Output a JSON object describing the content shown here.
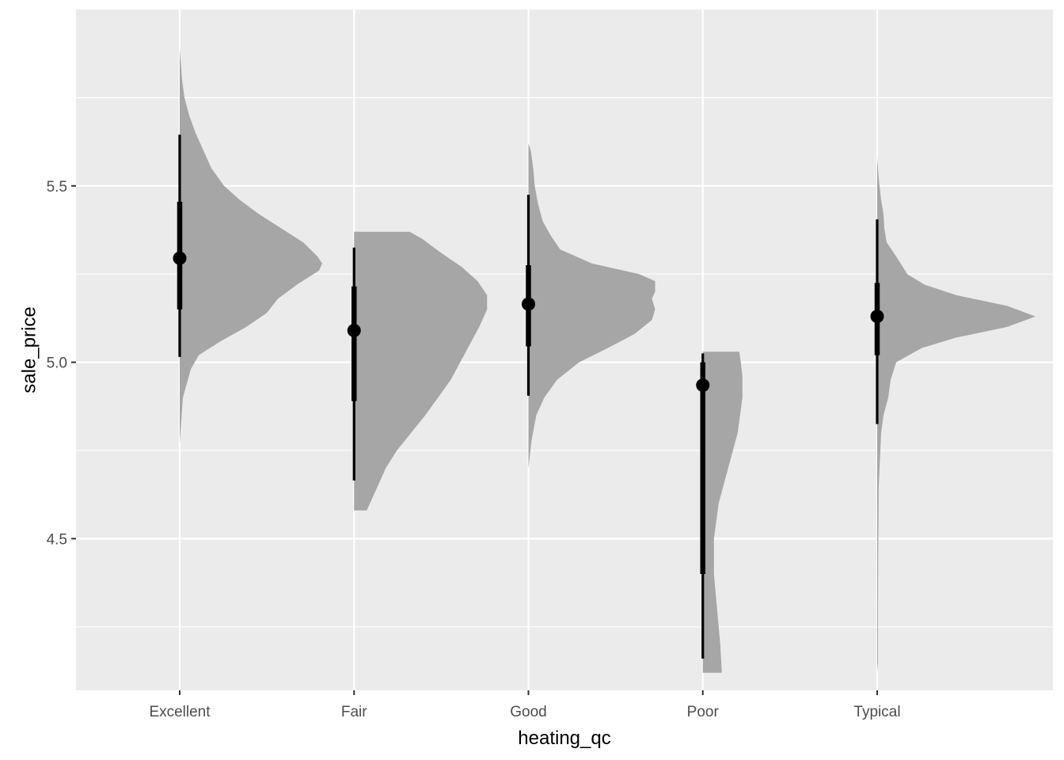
{
  "chart_data": {
    "type": "half-eye",
    "xlabel": "heating_qc",
    "ylabel": "sale_price",
    "categories": [
      "Excellent",
      "Fair",
      "Good",
      "Poor",
      "Typical"
    ],
    "ylim": [
      4.07,
      6.0
    ],
    "yticks": [
      4.5,
      5.0,
      5.5
    ],
    "y_minor_ticks": [
      4.25,
      4.75,
      5.25,
      5.75
    ],
    "grid": true,
    "colors": {
      "panel": "#ebebeb",
      "grid": "#ffffff",
      "density": "#a6a6a6",
      "interval": "#000000"
    },
    "series": [
      {
        "category": "Excellent",
        "median": 5.295,
        "interval_66": [
          5.15,
          5.455
        ],
        "interval_95": [
          5.015,
          5.645
        ],
        "density": [
          [
            4.77,
            0.0
          ],
          [
            4.9,
            0.02
          ],
          [
            4.98,
            0.07
          ],
          [
            5.02,
            0.12
          ],
          [
            5.06,
            0.26
          ],
          [
            5.1,
            0.42
          ],
          [
            5.14,
            0.55
          ],
          [
            5.18,
            0.62
          ],
          [
            5.22,
            0.74
          ],
          [
            5.26,
            0.88
          ],
          [
            5.28,
            0.9
          ],
          [
            5.3,
            0.87
          ],
          [
            5.34,
            0.78
          ],
          [
            5.38,
            0.64
          ],
          [
            5.42,
            0.5
          ],
          [
            5.46,
            0.38
          ],
          [
            5.5,
            0.28
          ],
          [
            5.55,
            0.2
          ],
          [
            5.6,
            0.15
          ],
          [
            5.65,
            0.1
          ],
          [
            5.7,
            0.06
          ],
          [
            5.75,
            0.03
          ],
          [
            5.8,
            0.015
          ],
          [
            5.89,
            0.0
          ]
        ]
      },
      {
        "category": "Fair",
        "median": 5.09,
        "interval_66": [
          4.89,
          5.215
        ],
        "interval_95": [
          4.665,
          5.325
        ],
        "density": [
          [
            4.58,
            0.08
          ],
          [
            4.6,
            0.1
          ],
          [
            4.65,
            0.15
          ],
          [
            4.7,
            0.2
          ],
          [
            4.75,
            0.27
          ],
          [
            4.8,
            0.36
          ],
          [
            4.85,
            0.45
          ],
          [
            4.9,
            0.53
          ],
          [
            4.95,
            0.61
          ],
          [
            5.0,
            0.67
          ],
          [
            5.05,
            0.73
          ],
          [
            5.1,
            0.79
          ],
          [
            5.15,
            0.84
          ],
          [
            5.19,
            0.84
          ],
          [
            5.23,
            0.78
          ],
          [
            5.27,
            0.68
          ],
          [
            5.31,
            0.55
          ],
          [
            5.35,
            0.43
          ],
          [
            5.37,
            0.35
          ],
          [
            5.37,
            0.0
          ]
        ]
      },
      {
        "category": "Good",
        "median": 5.165,
        "interval_66": [
          5.045,
          5.275
        ],
        "interval_95": [
          4.905,
          5.475
        ],
        "density": [
          [
            4.7,
            0.0
          ],
          [
            4.78,
            0.02
          ],
          [
            4.85,
            0.05
          ],
          [
            4.9,
            0.1
          ],
          [
            4.95,
            0.18
          ],
          [
            5.0,
            0.32
          ],
          [
            5.04,
            0.5
          ],
          [
            5.08,
            0.67
          ],
          [
            5.12,
            0.78
          ],
          [
            5.15,
            0.8
          ],
          [
            5.18,
            0.78
          ],
          [
            5.2,
            0.8
          ],
          [
            5.23,
            0.8
          ],
          [
            5.25,
            0.7
          ],
          [
            5.28,
            0.4
          ],
          [
            5.32,
            0.2
          ],
          [
            5.36,
            0.14
          ],
          [
            5.4,
            0.09
          ],
          [
            5.45,
            0.06
          ],
          [
            5.5,
            0.04
          ],
          [
            5.55,
            0.03
          ],
          [
            5.6,
            0.015
          ],
          [
            5.62,
            0.0
          ]
        ]
      },
      {
        "category": "Poor",
        "median": 4.935,
        "interval_66": [
          4.4,
          5.0
        ],
        "interval_95": [
          4.16,
          5.025
        ],
        "density": [
          [
            4.12,
            0.0
          ],
          [
            4.12,
            0.12
          ],
          [
            4.2,
            0.11
          ],
          [
            4.3,
            0.09
          ],
          [
            4.4,
            0.07
          ],
          [
            4.5,
            0.07
          ],
          [
            4.6,
            0.1
          ],
          [
            4.7,
            0.16
          ],
          [
            4.8,
            0.22
          ],
          [
            4.9,
            0.25
          ],
          [
            4.96,
            0.25
          ],
          [
            5.0,
            0.24
          ],
          [
            5.03,
            0.23
          ],
          [
            5.03,
            0.0
          ]
        ]
      },
      {
        "category": "Typical",
        "median": 5.13,
        "interval_66": [
          5.02,
          5.225
        ],
        "interval_95": [
          4.825,
          5.405
        ],
        "density": [
          [
            4.12,
            0.0
          ],
          [
            4.15,
            0.005
          ],
          [
            4.3,
            0.005
          ],
          [
            4.5,
            0.007
          ],
          [
            4.65,
            0.01
          ],
          [
            4.75,
            0.02
          ],
          [
            4.8,
            0.025
          ],
          [
            4.85,
            0.04
          ],
          [
            4.9,
            0.07
          ],
          [
            4.95,
            0.085
          ],
          [
            5.0,
            0.12
          ],
          [
            5.04,
            0.28
          ],
          [
            5.07,
            0.5
          ],
          [
            5.1,
            0.82
          ],
          [
            5.13,
            1.0
          ],
          [
            5.16,
            0.82
          ],
          [
            5.19,
            0.5
          ],
          [
            5.22,
            0.3
          ],
          [
            5.25,
            0.19
          ],
          [
            5.3,
            0.12
          ],
          [
            5.34,
            0.06
          ],
          [
            5.38,
            0.045
          ],
          [
            5.42,
            0.04
          ],
          [
            5.46,
            0.025
          ],
          [
            5.52,
            0.01
          ],
          [
            5.58,
            0.0
          ]
        ]
      }
    ]
  }
}
